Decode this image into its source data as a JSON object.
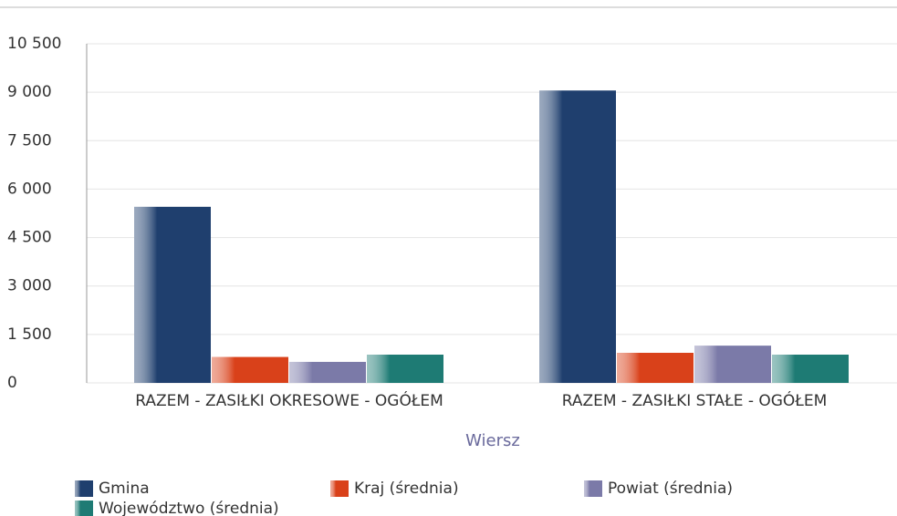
{
  "chart_data": {
    "type": "bar",
    "x_label": "Wiersz",
    "categories": [
      "RAZEM -  ZASIŁKI OKRESOWE - OGÓŁEM",
      "RAZEM -  ZASIŁKI STAŁE - OGÓŁEM"
    ],
    "series": [
      {
        "name": "Gmina",
        "color": "#1f3f6e",
        "values": [
          5450,
          9050
        ]
      },
      {
        "name": "Kraj (średnia)",
        "color": "#d9411a",
        "values": [
          800,
          930
        ]
      },
      {
        "name": "Powiat (średnia)",
        "color": "#7b7aa8",
        "values": [
          650,
          1150
        ]
      },
      {
        "name": "Województwo (średnia)",
        "color": "#1e7b74",
        "values": [
          875,
          875
        ]
      }
    ],
    "ylim": [
      0,
      10500
    ],
    "yticks": [
      0,
      {
        "value": 1500,
        "label": "1 500"
      },
      {
        "value": 3000,
        "label": "3 000"
      },
      {
        "value": 4500,
        "label": "4 500"
      },
      {
        "value": 6000,
        "label": "6 000"
      },
      {
        "value": 7500,
        "label": "7 500"
      },
      {
        "value": 9000,
        "label": "9 000"
      },
      {
        "value": 10500,
        "label": "10 500"
      }
    ],
    "grid": true
  }
}
